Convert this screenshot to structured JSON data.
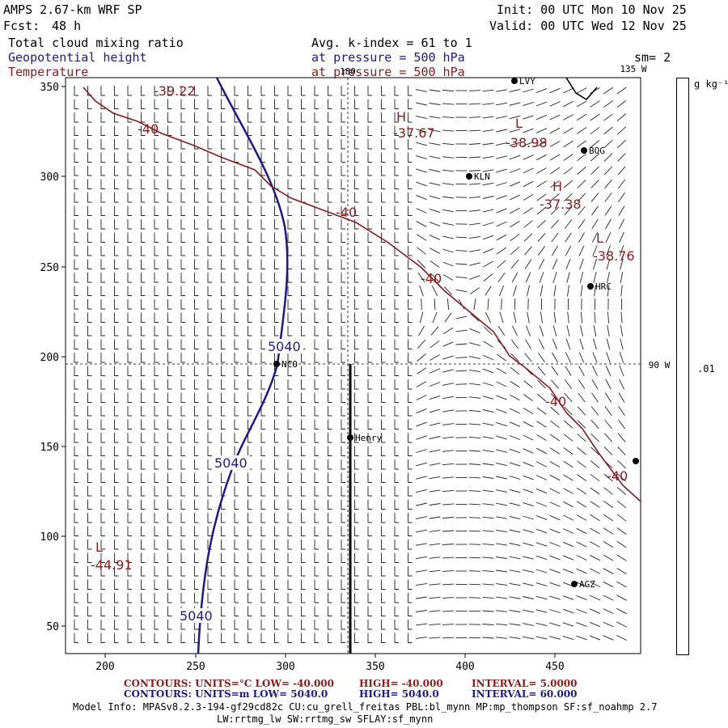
{
  "header": {
    "model": "AMPS 2.67-km WRF SP",
    "fcst_label": "Fcst:",
    "fcst_value": "48 h",
    "init": "Init: 00 UTC Mon 10 Nov 25",
    "valid": "Valid: 00 UTC Wed 12 Nov 25",
    "field1": "Total cloud mixing ratio",
    "field2": "Geopotential height",
    "field3": "Temperature",
    "avg": "Avg. k-index =  61 to   1",
    "pressure1": "at pressure =  500 hPa",
    "pressure2": "at pressure =  500 hPa",
    "sm": "sm= 2",
    "colorbar_unit": "g kg⁻¹",
    "colorbar_value": ".01"
  },
  "map": {
    "lon_labels": [
      "180",
      "135 W",
      "90 W"
    ],
    "x_ticks": [
      "200",
      "250",
      "300",
      "350",
      "400",
      "450"
    ],
    "y_ticks": [
      "350",
      "300",
      "250",
      "200",
      "150",
      "100",
      "50"
    ],
    "stations": [
      "LVY",
      "BOG",
      "KLN",
      "HRC",
      "NCO",
      "Henry",
      "AGZ"
    ],
    "temp_labels": [
      "-39.22",
      "-40",
      "H",
      "-37.67",
      "L",
      "-38.98",
      "H",
      "-37.38",
      "-40",
      "L",
      "-38.76",
      "-40",
      "-40",
      "-40",
      "L",
      "-44.91"
    ],
    "height_labels": [
      "5040",
      "5040",
      "5040"
    ],
    "colors": {
      "temperature": "#8b1a1a",
      "height": "#1a1a8c"
    }
  },
  "footer": {
    "temp_contours": "CONTOURS:  UNITS=°C  LOW= -40.000",
    "temp_high": "HIGH= -40.000",
    "temp_interval": "INTERVAL=    5.0000",
    "hgt_contours": "CONTOURS:  UNITS=m  LOW=  5040.0",
    "hgt_high": "HIGH=  5040.0",
    "hgt_interval": "INTERVAL=    60.000",
    "model_info": "Model Info: MPASv8.2.3-194-gf29cd82c CU:cu_grell_freitas PBL:bl_mynn MP:mp_thompson SF:sf_noahmp 2.7",
    "model_info2": "LW:rrtmg_lw SW:rrtmg_sw SFLAY:sf_mynn"
  }
}
